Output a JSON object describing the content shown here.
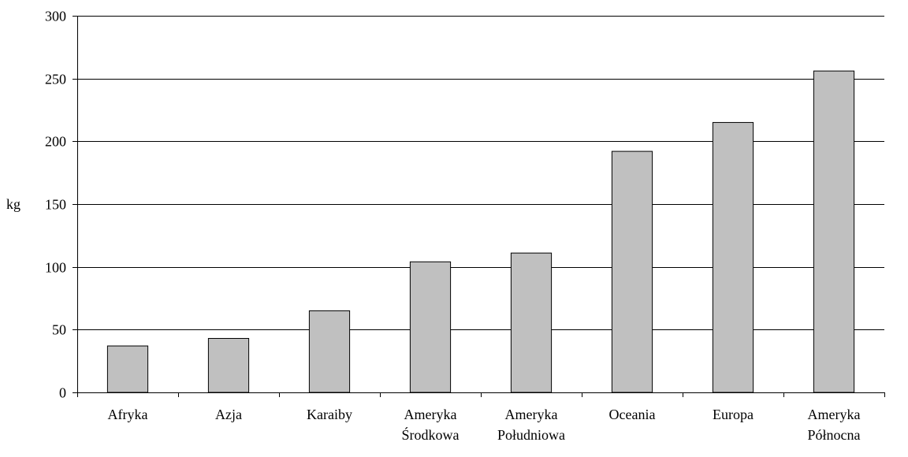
{
  "chart_data": {
    "type": "bar",
    "title": "",
    "xlabel": "",
    "ylabel": "kg",
    "ylim": [
      0,
      300
    ],
    "yticks": [
      0,
      50,
      100,
      150,
      200,
      250,
      300
    ],
    "grid": true,
    "categories": [
      [
        "Afryka"
      ],
      [
        "Azja"
      ],
      [
        "Karaiby"
      ],
      [
        "Ameryka",
        "Środkowa"
      ],
      [
        "Ameryka",
        "Południowa"
      ],
      [
        "Oceania"
      ],
      [
        "Europa"
      ],
      [
        "Ameryka",
        "Północna"
      ]
    ],
    "values": [
      37,
      43,
      65,
      104,
      111,
      192,
      215,
      256
    ],
    "bar_color": "#c0c0c0",
    "bar_edge_color": "#000000"
  }
}
